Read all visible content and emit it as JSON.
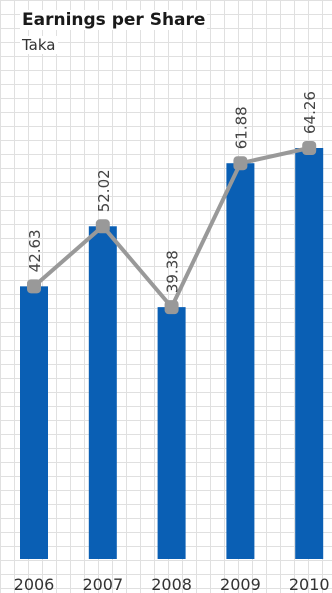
{
  "chart_data": {
    "type": "bar",
    "title": "Earnings per Share",
    "subtitle": "Taka",
    "categories": [
      "2006",
      "2007",
      "2008",
      "2009",
      "2010"
    ],
    "series": [
      {
        "type": "bar",
        "values": [
          42.63,
          52.02,
          39.38,
          61.88,
          64.26
        ]
      },
      {
        "type": "line",
        "values": [
          42.63,
          52.02,
          39.38,
          61.88,
          64.26
        ]
      }
    ],
    "data_labels": [
      "42.63",
      "52.02",
      "39.38",
      "61.88",
      "64.26"
    ],
    "ylim": [
      0,
      64.26
    ],
    "grid": true,
    "colors": {
      "bar": "#0a5fb4",
      "line": "#999999",
      "label": "#444444"
    }
  }
}
